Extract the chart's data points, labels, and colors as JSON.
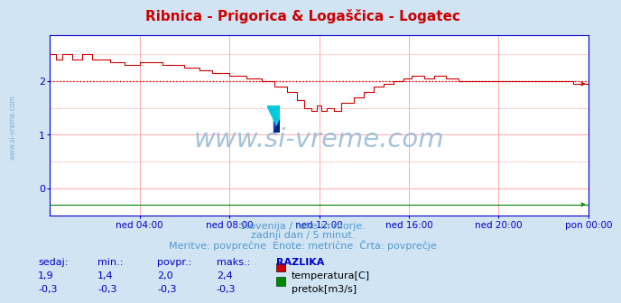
{
  "title": "Ribnica - Prigorica & Logaščica - Logatec",
  "title_color": "#cc0000",
  "bg_color": "#d0e4f4",
  "plot_bg_color": "#ffffff",
  "grid_color": "#ffaaaa",
  "axis_color": "#0000cc",
  "ylim": [
    -0.5,
    2.85
  ],
  "yticks": [
    0,
    1,
    2
  ],
  "xtick_labels": [
    "ned 04:00",
    "ned 08:00",
    "ned 12:00",
    "ned 16:00",
    "ned 20:00",
    "pon 00:00"
  ],
  "xtick_positions": [
    72,
    144,
    216,
    288,
    360,
    432
  ],
  "total_points": 433,
  "watermark_text": "www.si-vreme.com",
  "subtitle1": "Slovenija / reke in morje.",
  "subtitle2": "zadnji dan / 5 minut.",
  "subtitle3": "Meritve: povprečne  Enote: metrične  Črta: povprečje",
  "subtitle_color": "#5599cc",
  "table_header": [
    "sedaj:",
    "min.:",
    "povpr.:",
    "maks.:",
    "RAZLIKA"
  ],
  "table_row1": [
    "1,9",
    "1,4",
    "2,0",
    "2,4",
    "temperatura[C]"
  ],
  "table_row2": [
    "-0,3",
    "-0,3",
    "-0,3",
    "-0,3",
    "pretok[m3/s]"
  ],
  "table_color": "#0000cc",
  "temp_color": "#cc0000",
  "flow_color": "#008800",
  "avg_line_color": "#cc0000",
  "avg_line_value": 2.0
}
